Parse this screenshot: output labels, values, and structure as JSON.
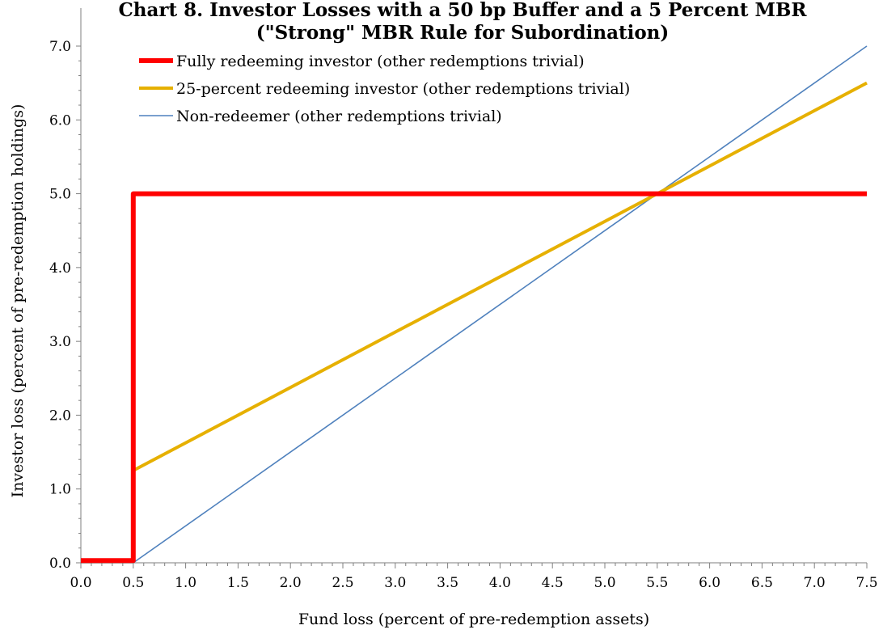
{
  "chart_data": {
    "type": "line",
    "title_lines": [
      "Chart 8. Investor Losses with a 50 bp Buffer and a 5 Percent MBR",
      "(\"Strong\" MBR Rule for Subordination)"
    ],
    "xlabel": "Fund loss (percent of pre-redemption assets)",
    "ylabel": "Investor loss (percent of pre-redemption holdings)",
    "xlim": [
      0,
      7.5
    ],
    "ylim": [
      0,
      7.0
    ],
    "x_ticks": [
      "0.0",
      "0.5",
      "1.0",
      "1.5",
      "2.0",
      "2.5",
      "3.0",
      "3.5",
      "4.0",
      "4.5",
      "5.0",
      "5.5",
      "6.0",
      "6.5",
      "7.0",
      "7.5"
    ],
    "y_ticks": [
      "0.0",
      "1.0",
      "2.0",
      "3.0",
      "4.0",
      "5.0",
      "6.0",
      "7.0"
    ],
    "grid": false,
    "legend_position": "top-left",
    "series": [
      {
        "name": "Fully redeeming investor (other redemptions trivial)",
        "color": "#ff0000",
        "points": [
          [
            0,
            0.03
          ],
          [
            0.5,
            0.03
          ],
          [
            0.5,
            5.0
          ],
          [
            7.5,
            5.0
          ]
        ]
      },
      {
        "name": "25-percent redeeming investor (other redemptions trivial)",
        "color": "#e6b000",
        "points": [
          [
            0,
            0.02
          ],
          [
            0.5,
            0.02
          ],
          [
            0.5,
            1.25
          ],
          [
            7.5,
            6.5
          ]
        ]
      },
      {
        "name": "Non-redeemer (other redemptions trivial)",
        "color": "#4f81bd",
        "points": [
          [
            0,
            0.0
          ],
          [
            0.5,
            0.0
          ],
          [
            7.5,
            7.0
          ]
        ]
      }
    ]
  }
}
